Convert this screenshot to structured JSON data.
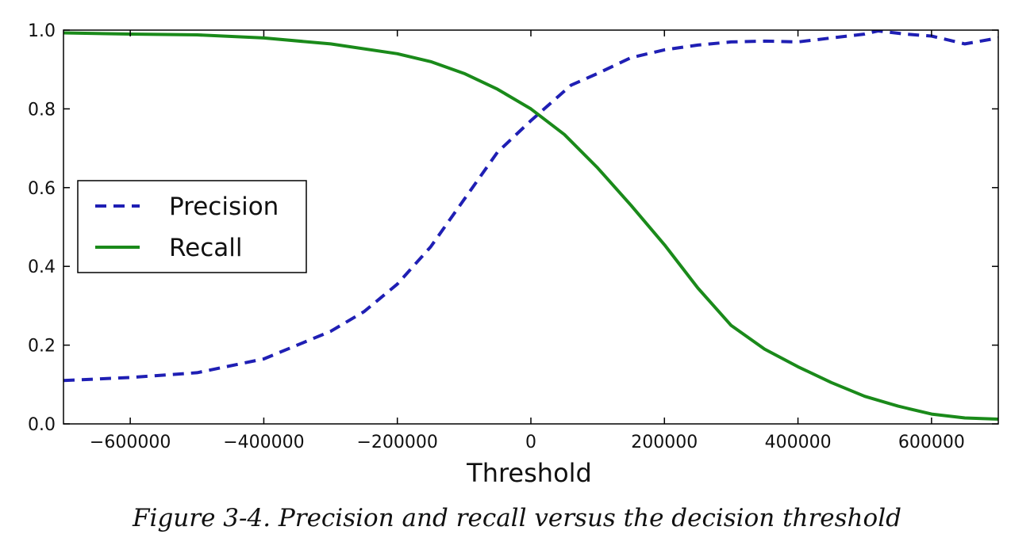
{
  "chart_data": {
    "type": "line",
    "xlabel": "Threshold",
    "ylabel": "",
    "xlim": [
      -700000,
      700000
    ],
    "ylim": [
      0.0,
      1.0
    ],
    "grid": false,
    "legend_position": "center-left",
    "x_ticks": [
      -600000,
      -400000,
      -200000,
      0,
      200000,
      400000,
      600000
    ],
    "x_tick_labels": [
      "−600000",
      "−400000",
      "−200000",
      "0",
      "200000",
      "400000",
      "600000"
    ],
    "y_ticks": [
      0.0,
      0.2,
      0.4,
      0.6,
      0.8,
      1.0
    ],
    "y_tick_labels": [
      "0.0",
      "0.2",
      "0.4",
      "0.6",
      "0.8",
      "1.0"
    ],
    "series": [
      {
        "name": "Precision",
        "style": "dashed",
        "color": "#1f1fb4",
        "points": [
          [
            -700000,
            0.11
          ],
          [
            -600000,
            0.118
          ],
          [
            -500000,
            0.13
          ],
          [
            -400000,
            0.165
          ],
          [
            -300000,
            0.235
          ],
          [
            -250000,
            0.285
          ],
          [
            -200000,
            0.355
          ],
          [
            -150000,
            0.45
          ],
          [
            -100000,
            0.57
          ],
          [
            -50000,
            0.69
          ],
          [
            0,
            0.77
          ],
          [
            20000,
            0.8
          ],
          [
            60000,
            0.86
          ],
          [
            100000,
            0.89
          ],
          [
            150000,
            0.93
          ],
          [
            200000,
            0.95
          ],
          [
            250000,
            0.962
          ],
          [
            300000,
            0.97
          ],
          [
            350000,
            0.972
          ],
          [
            400000,
            0.97
          ],
          [
            450000,
            0.98
          ],
          [
            500000,
            0.99
          ],
          [
            520000,
            0.998
          ],
          [
            560000,
            0.99
          ],
          [
            600000,
            0.985
          ],
          [
            650000,
            0.965
          ],
          [
            700000,
            0.98
          ]
        ]
      },
      {
        "name": "Recall",
        "style": "solid",
        "color": "#1a8a1a",
        "points": [
          [
            -700000,
            0.993
          ],
          [
            -600000,
            0.99
          ],
          [
            -500000,
            0.988
          ],
          [
            -400000,
            0.98
          ],
          [
            -300000,
            0.965
          ],
          [
            -200000,
            0.94
          ],
          [
            -150000,
            0.92
          ],
          [
            -100000,
            0.89
          ],
          [
            -50000,
            0.85
          ],
          [
            0,
            0.8
          ],
          [
            50000,
            0.735
          ],
          [
            100000,
            0.65
          ],
          [
            150000,
            0.555
          ],
          [
            200000,
            0.455
          ],
          [
            250000,
            0.345
          ],
          [
            300000,
            0.25
          ],
          [
            350000,
            0.19
          ],
          [
            400000,
            0.145
          ],
          [
            450000,
            0.105
          ],
          [
            500000,
            0.07
          ],
          [
            550000,
            0.045
          ],
          [
            600000,
            0.025
          ],
          [
            650000,
            0.015
          ],
          [
            700000,
            0.012
          ]
        ]
      }
    ]
  },
  "caption": "Figure 3-4. Precision and recall versus the decision threshold"
}
